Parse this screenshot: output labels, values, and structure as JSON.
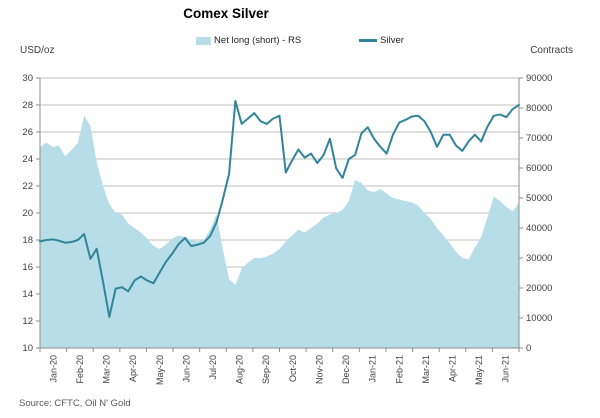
{
  "title": "Comex Silver",
  "axis_titles": {
    "left": "USD/oz",
    "right": "Contracts"
  },
  "source": "Source: CFTC, Oil N' Gold",
  "legend": {
    "items": [
      {
        "label": "Net long (short) - RS",
        "swatch": "area"
      },
      {
        "label": "Silver",
        "swatch": "line"
      }
    ]
  },
  "colors": {
    "area_fill": "#b7dee8",
    "line_stroke": "#31849b",
    "gridline": "#bfbfbf",
    "axis_line": "#8c8c8c",
    "tick_text": "#3f3f3f",
    "title_text": "#000000",
    "source_text": "#595959"
  },
  "chart_data": {
    "type": "combo-area-line",
    "title": "Comex Silver",
    "grid": true,
    "legend_position": "top",
    "categories": [
      "Jan-20",
      "Feb-20",
      "Mar-20",
      "Apr-20",
      "May-20",
      "Jun-20",
      "Jul-20",
      "Aug-20",
      "Sep-20",
      "Oct-20",
      "Nov-20",
      "Dec-20",
      "Jan-21",
      "Feb-21",
      "Mar-21",
      "Apr-21",
      "May-21",
      "Jun-21"
    ],
    "left_axis": {
      "title": "USD/oz",
      "min": 10,
      "max": 30,
      "step": 2,
      "ticks": [
        "30",
        "28",
        "26",
        "24",
        "22",
        "20",
        "18",
        "16",
        "14",
        "12",
        "10"
      ]
    },
    "right_axis": {
      "title": "Contracts",
      "min": 0,
      "max": 90000,
      "step": 10000,
      "ticks": [
        "90000",
        "80000",
        "70000",
        "60000",
        "50000",
        "40000",
        "30000",
        "20000",
        "10000",
        "0"
      ]
    },
    "series": [
      {
        "name": "Net long (short) - RS",
        "type": "area",
        "axis": "right",
        "color": "#b7dee8",
        "values": [
          67000,
          68500,
          67000,
          67500,
          63900,
          66000,
          68400,
          77400,
          74000,
          62000,
          54000,
          48000,
          45000,
          44500,
          41500,
          40000,
          38500,
          36500,
          34000,
          33000,
          34500,
          36500,
          37500,
          37000,
          36000,
          35500,
          36000,
          39500,
          44500,
          33000,
          23000,
          21000,
          26500,
          28500,
          30000,
          30000,
          30500,
          31500,
          33000,
          35500,
          37500,
          39500,
          38500,
          40000,
          41500,
          43500,
          44500,
          45000,
          46000,
          49000,
          56000,
          55000,
          52500,
          52000,
          53000,
          51500,
          50000,
          49500,
          49000,
          48500,
          47500,
          45000,
          43000,
          40000,
          37500,
          35000,
          32000,
          30000,
          29500,
          33500,
          37000,
          43500,
          50500,
          49000,
          47000,
          45500,
          48500
        ]
      },
      {
        "name": "Silver",
        "type": "line",
        "axis": "left",
        "color": "#31849b",
        "values": [
          17.9,
          18.0,
          18.05,
          17.95,
          17.8,
          17.85,
          18.0,
          18.45,
          16.6,
          17.35,
          14.9,
          12.3,
          14.4,
          14.5,
          14.2,
          15.0,
          15.3,
          15.0,
          14.8,
          15.6,
          16.4,
          17.0,
          17.7,
          18.15,
          17.55,
          17.65,
          17.8,
          18.3,
          19.3,
          21.0,
          22.9,
          28.3,
          26.6,
          27.0,
          27.4,
          26.8,
          26.6,
          27.0,
          27.2,
          23.0,
          23.9,
          24.7,
          24.1,
          24.4,
          23.7,
          24.3,
          25.5,
          23.3,
          22.6,
          24.0,
          24.3,
          25.9,
          26.35,
          25.5,
          24.9,
          24.4,
          25.8,
          26.7,
          26.9,
          27.15,
          27.2,
          26.8,
          26.0,
          24.9,
          25.8,
          25.8,
          25.0,
          24.6,
          25.3,
          25.8,
          25.3,
          26.4,
          27.2,
          27.3,
          27.1,
          27.7,
          28.0
        ]
      }
    ]
  }
}
